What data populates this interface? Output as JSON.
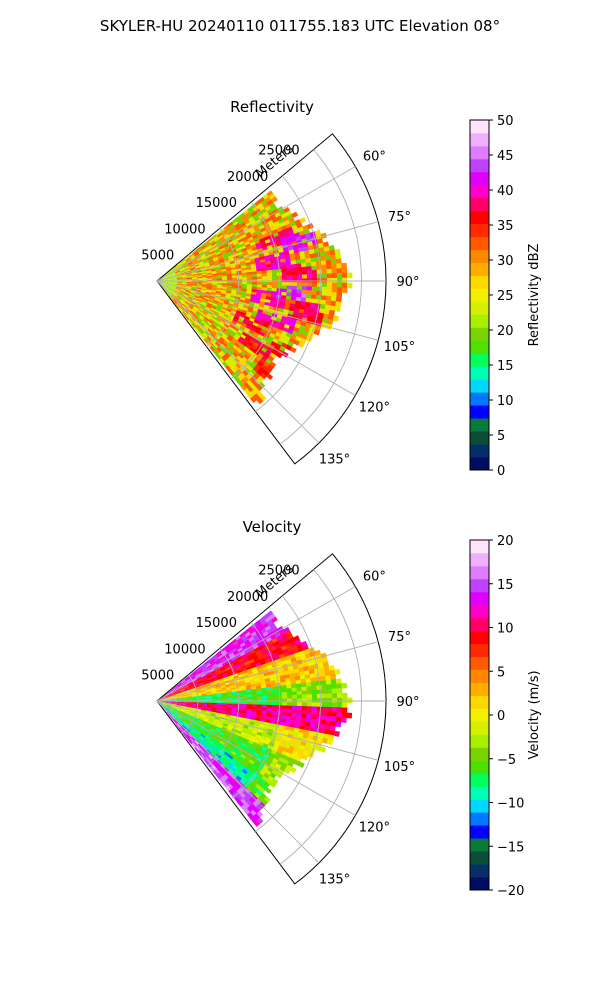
{
  "figure": {
    "suptitle": "SKYLER-HU  20240110  011755.183 UTC Elevation 08°"
  },
  "chart_data": [
    {
      "type": "heatmap",
      "projection": "polar-sector",
      "title": "Reflectivity",
      "radial_label": "Meters",
      "radial_ticks": [
        "5000",
        "10000",
        "15000",
        "20000",
        "25000"
      ],
      "radial_values": [
        5000,
        10000,
        15000,
        20000,
        25000
      ],
      "r_max": 28000,
      "angle_ticks": [
        "60°",
        "75°",
        "90°",
        "105°",
        "120°",
        "135°"
      ],
      "angle_values": [
        60,
        75,
        90,
        105,
        120,
        135
      ],
      "angle_range_deg": [
        50,
        143
      ],
      "data_max_range_m": 24000,
      "grid": true,
      "colorbar": {
        "label": "Reflectivity dBZ",
        "range": [
          0,
          50
        ],
        "ticks": [
          "0",
          "5",
          "10",
          "15",
          "20",
          "25",
          "30",
          "35",
          "40",
          "45",
          "50"
        ],
        "tick_values": [
          0,
          5,
          10,
          15,
          20,
          25,
          30,
          35,
          40,
          45,
          50
        ],
        "colors": [
          "#000c5e",
          "#062e6b",
          "#0b4d36",
          "#0a7a3a",
          "#0000ff",
          "#0078ff",
          "#00d8ff",
          "#00ffb4",
          "#00ff5a",
          "#4ee000",
          "#7ad400",
          "#a8f000",
          "#d4f000",
          "#f0f000",
          "#ffd700",
          "#ffae00",
          "#ff8800",
          "#ff5a00",
          "#ff2a00",
          "#ff0000",
          "#ff0064",
          "#ff00c8",
          "#e100ff",
          "#c040ff",
          "#e07cff",
          "#f0b0ff",
          "#ffe4ff"
        ]
      },
      "dominant_values": [
        20,
        23,
        27,
        30,
        33
      ],
      "cells": [
        {
          "az": 70,
          "r": 15000,
          "value": 38
        },
        {
          "az": 74,
          "r": 17500,
          "value": 42
        },
        {
          "az": 80,
          "r": 14000,
          "value": 40
        },
        {
          "az": 86,
          "r": 17000,
          "value": 38
        },
        {
          "az": 94,
          "r": 16500,
          "value": 43
        },
        {
          "az": 98,
          "r": 13500,
          "value": 40
        },
        {
          "az": 101,
          "r": 18500,
          "value": 38
        },
        {
          "az": 108,
          "r": 15000,
          "value": 40
        },
        {
          "az": 113,
          "r": 12000,
          "value": 37
        },
        {
          "az": 118,
          "r": 17500,
          "value": 36
        },
        {
          "az": 123,
          "r": 14000,
          "value": 36
        },
        {
          "az": 129,
          "r": 18000,
          "value": 35
        }
      ]
    },
    {
      "type": "heatmap",
      "projection": "polar-sector",
      "title": "Velocity",
      "radial_label": "Meters",
      "radial_ticks": [
        "5000",
        "10000",
        "15000",
        "20000",
        "25000"
      ],
      "radial_values": [
        5000,
        10000,
        15000,
        20000,
        25000
      ],
      "r_max": 28000,
      "angle_ticks": [
        "60°",
        "75°",
        "90°",
        "105°",
        "120°",
        "135°"
      ],
      "angle_values": [
        60,
        75,
        90,
        105,
        120,
        135
      ],
      "angle_range_deg": [
        50,
        143
      ],
      "data_max_range_m": 24000,
      "grid": true,
      "colorbar": {
        "label": "Velocity (m/s)",
        "range": [
          -20,
          20
        ],
        "ticks": [
          "−20",
          "−15",
          "−10",
          "−5",
          "0",
          "5",
          "10",
          "15",
          "20"
        ],
        "tick_values": [
          -20,
          -15,
          -10,
          -5,
          0,
          5,
          10,
          15,
          20
        ],
        "colors": [
          "#000c5e",
          "#062e6b",
          "#0b4d36",
          "#0a7a3a",
          "#0000ff",
          "#0078ff",
          "#00d8ff",
          "#00ffb4",
          "#00ff5a",
          "#4ee000",
          "#7ad400",
          "#a8f000",
          "#d4f000",
          "#f0f000",
          "#ffd700",
          "#ffae00",
          "#ff8800",
          "#ff5a00",
          "#ff2a00",
          "#ff0000",
          "#ff0064",
          "#ff00c8",
          "#e100ff",
          "#c040ff",
          "#e07cff",
          "#f0b0ff",
          "#ffe4ff"
        ]
      },
      "zones": [
        {
          "az_from": 50,
          "az_to": 62,
          "value": 14
        },
        {
          "az_from": 62,
          "az_to": 70,
          "value": 9
        },
        {
          "az_from": 70,
          "az_to": 82,
          "value": 2
        },
        {
          "az_from": 82,
          "az_to": 92,
          "value": -7
        },
        {
          "az_from": 92,
          "az_to": 100,
          "value": 11
        },
        {
          "az_from": 100,
          "az_to": 112,
          "value": -2
        },
        {
          "az_from": 112,
          "az_to": 126,
          "value": -6
        },
        {
          "az_from": 126,
          "az_to": 133,
          "value": -9
        },
        {
          "az_from": 133,
          "az_to": 143,
          "value": 15
        }
      ]
    }
  ]
}
